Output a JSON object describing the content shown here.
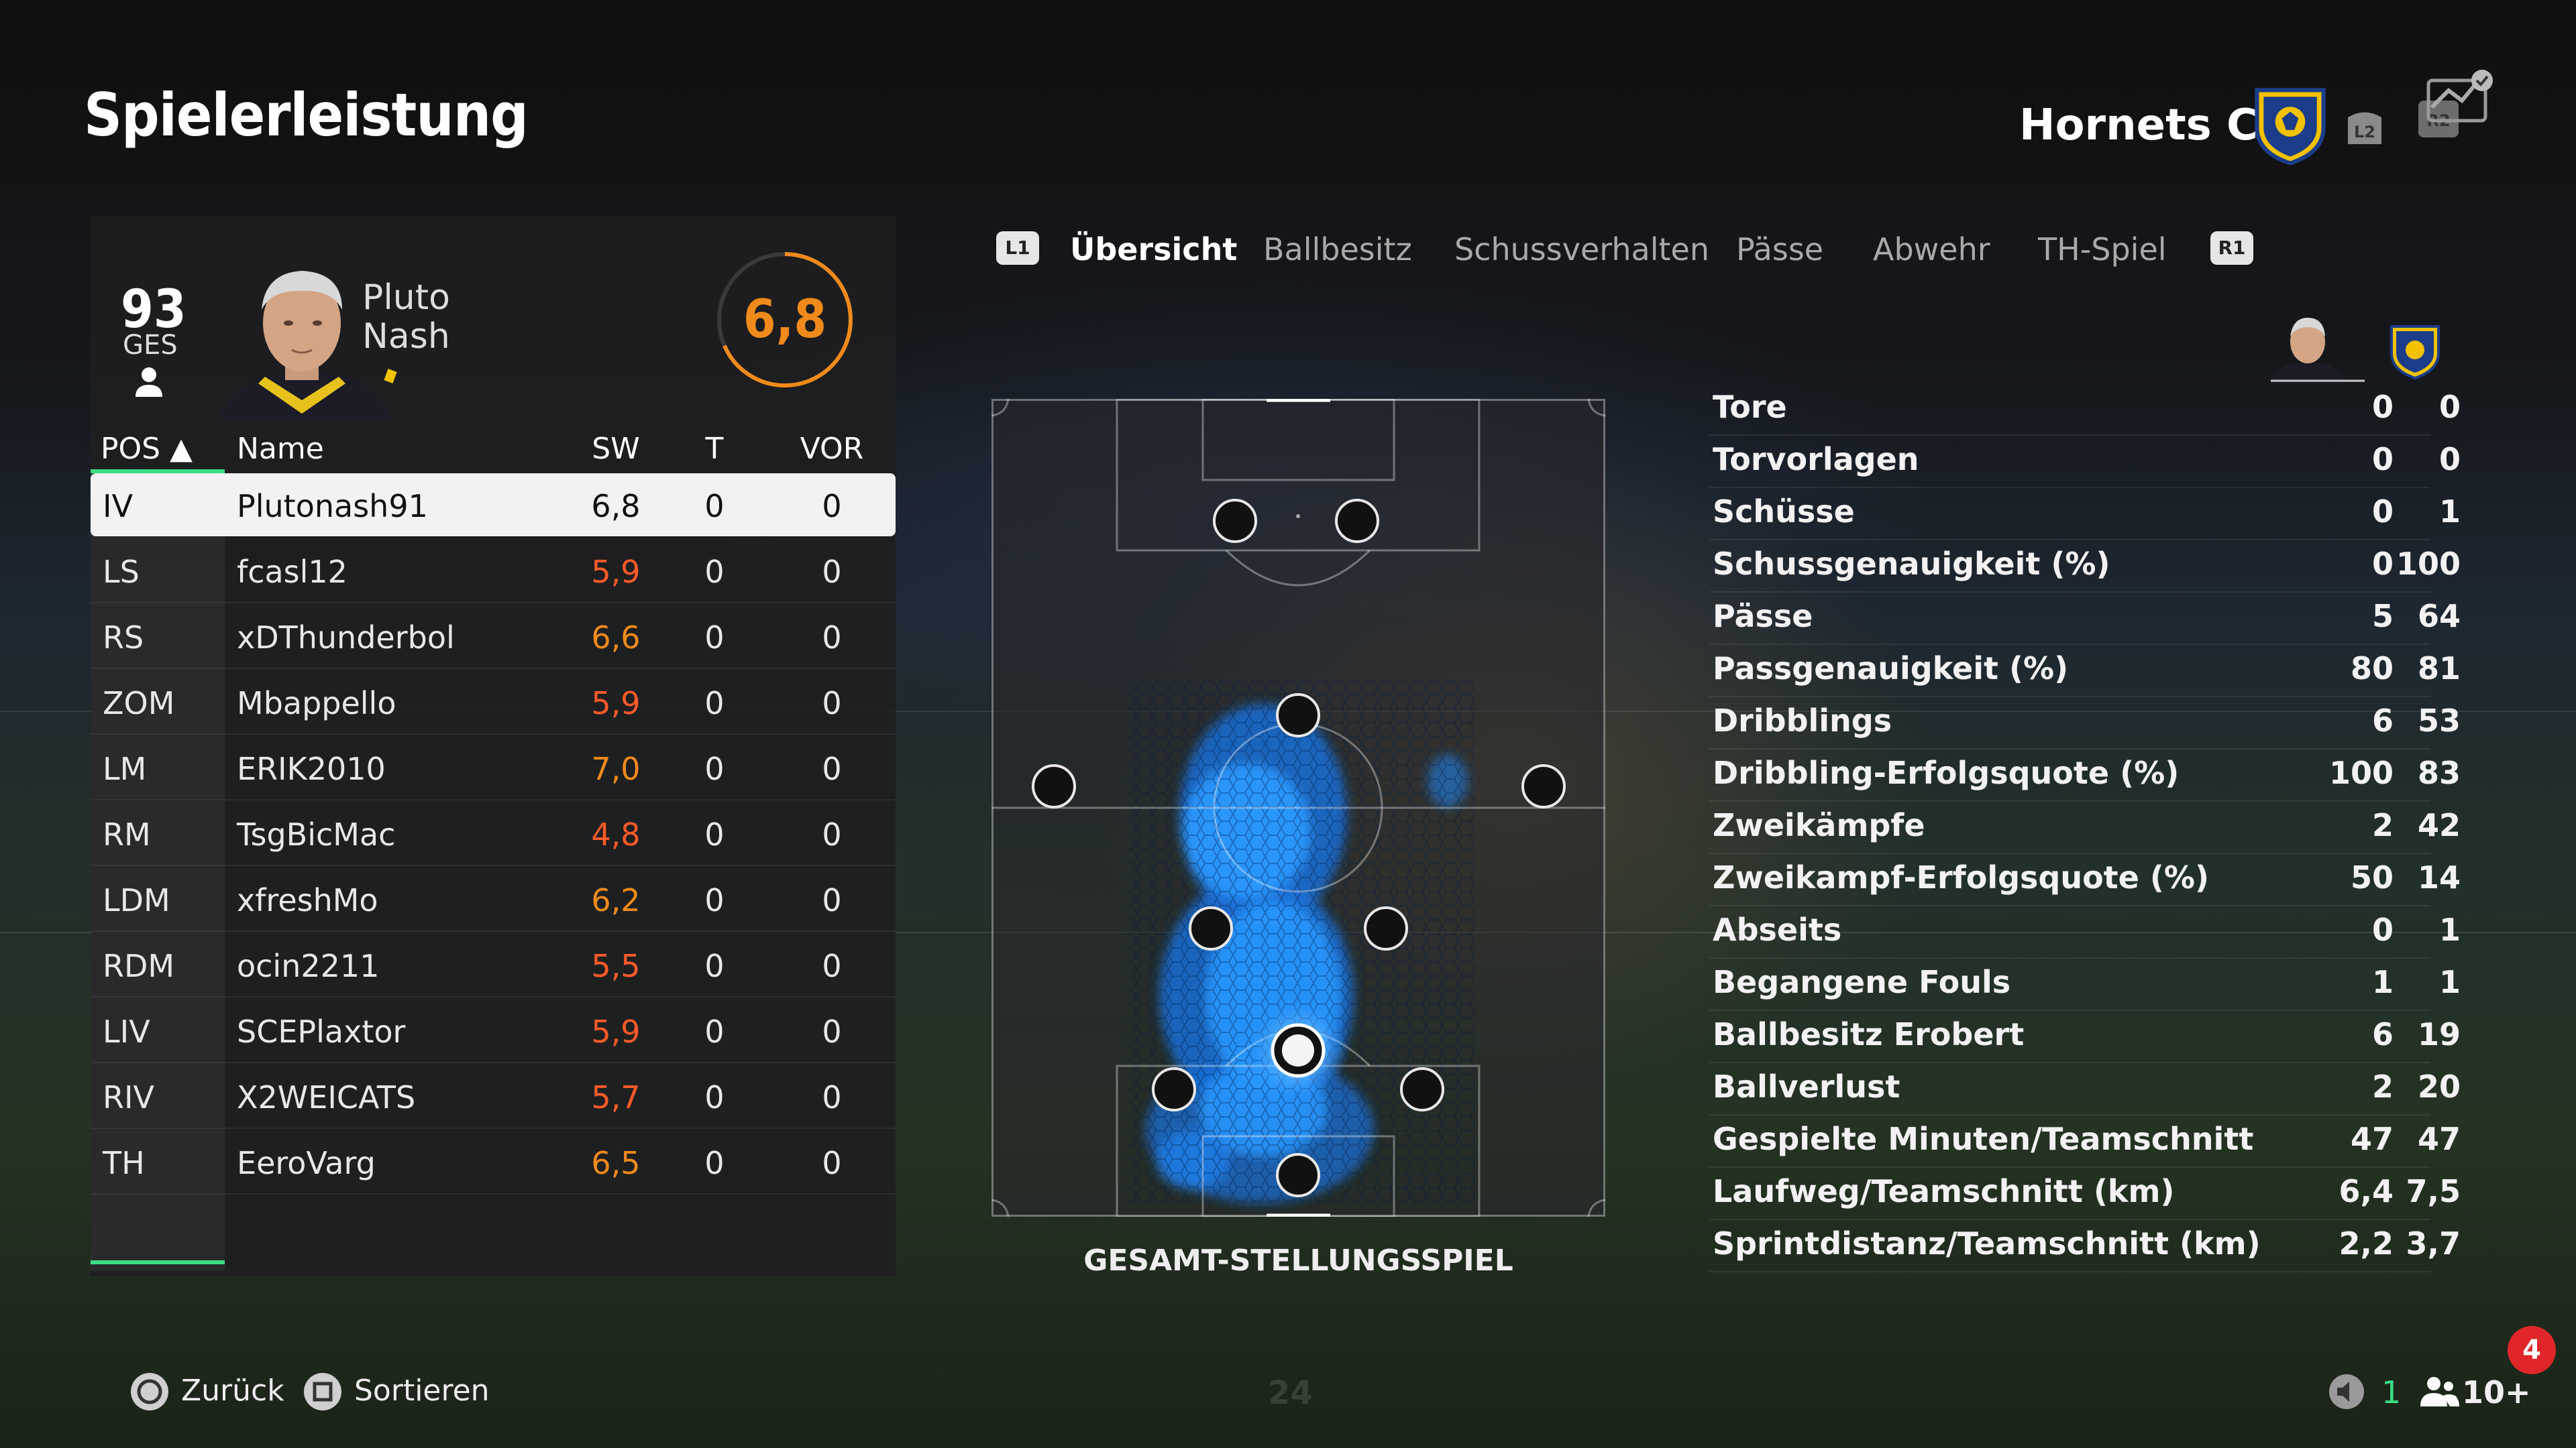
{
  "header": {
    "title": "Spielerleistung",
    "club_name": "Hornets CF"
  },
  "player": {
    "overall": "93",
    "overall_label": "GES",
    "first_name": "Pluto",
    "last_name": "Nash",
    "rating": "6,8"
  },
  "table": {
    "columns": {
      "pos": "POS ▲",
      "name": "Name",
      "sw": "SW",
      "t": "T",
      "vor": "VOR"
    },
    "rows": [
      {
        "pos": "IV",
        "name": "Plutonash91",
        "sw": "6,8",
        "t": "0",
        "vor": "0",
        "selected": true
      },
      {
        "pos": "LS",
        "name": "fcasl12",
        "sw": "5,9",
        "t": "0",
        "vor": "0"
      },
      {
        "pos": "RS",
        "name": "xDThunderbol",
        "sw": "6,6",
        "t": "0",
        "vor": "0"
      },
      {
        "pos": "ZOM",
        "name": "Mbappello",
        "sw": "5,9",
        "t": "0",
        "vor": "0"
      },
      {
        "pos": "LM",
        "name": "ERIK2010",
        "sw": "7,0",
        "t": "0",
        "vor": "0"
      },
      {
        "pos": "RM",
        "name": "TsgBicMac",
        "sw": "4,8",
        "t": "0",
        "vor": "0"
      },
      {
        "pos": "LDM",
        "name": "xfreshMo",
        "sw": "6,2",
        "t": "0",
        "vor": "0"
      },
      {
        "pos": "RDM",
        "name": "ocin2211",
        "sw": "5,5",
        "t": "0",
        "vor": "0"
      },
      {
        "pos": "LIV",
        "name": "SCEPlaxtor",
        "sw": "5,9",
        "t": "0",
        "vor": "0"
      },
      {
        "pos": "RIV",
        "name": "X2WEICATS",
        "sw": "5,7",
        "t": "0",
        "vor": "0"
      },
      {
        "pos": "TH",
        "name": "EeroVarg",
        "sw": "6,5",
        "t": "0",
        "vor": "0"
      }
    ]
  },
  "tabs": {
    "left_button": "L1",
    "right_button": "R1",
    "items": [
      "Übersicht",
      "Ballbesitz",
      "Schussverhalten",
      "Pässe",
      "Abwehr",
      "TH-Spiel"
    ],
    "active": "Übersicht"
  },
  "pitch": {
    "caption": "GESAMT-STELLUNGSSPIEL"
  },
  "stats": [
    {
      "label": "Tore",
      "player": "0",
      "team": "0"
    },
    {
      "label": "Torvorlagen",
      "player": "0",
      "team": "0"
    },
    {
      "label": "Schüsse",
      "player": "0",
      "team": "1"
    },
    {
      "label": "Schussgenauigkeit (%)",
      "player": "0",
      "team": "100"
    },
    {
      "label": "Pässe",
      "player": "5",
      "team": "64"
    },
    {
      "label": "Passgenauigkeit (%)",
      "player": "80",
      "team": "81"
    },
    {
      "label": "Dribblings",
      "player": "6",
      "team": "53"
    },
    {
      "label": "Dribbling-Erfolgsquote (%)",
      "player": "100",
      "team": "83"
    },
    {
      "label": "Zweikämpfe",
      "player": "2",
      "team": "42"
    },
    {
      "label": "Zweikampf-Erfolgsquote (%)",
      "player": "50",
      "team": "14"
    },
    {
      "label": "Abseits",
      "player": "0",
      "team": "1"
    },
    {
      "label": "Begangene Fouls",
      "player": "1",
      "team": "1"
    },
    {
      "label": "Ballbesitz Erobert",
      "player": "6",
      "team": "19"
    },
    {
      "label": "Ballverlust",
      "player": "2",
      "team": "20"
    },
    {
      "label": "Gespielte Minuten/Teamschnitt",
      "player": "47",
      "team": "47"
    },
    {
      "label": "Laufweg/Teamschnitt (km)",
      "player": "6,4",
      "team": "7,5"
    },
    {
      "label": "Sprintdistanz/Teamschnitt (km)",
      "player": "2,2",
      "team": "3,7"
    }
  ],
  "footer": {
    "back_label": "Zurück",
    "sort_label": "Sortieren",
    "page_number": "24",
    "voice_count": "1",
    "players_count": "10+",
    "notifications": "4"
  },
  "colors": {
    "rating_orange": "#f08a1a",
    "rating_red": "#ff5a2a",
    "accent_green": "#3ddc84",
    "heat_blue": "#1e8cff",
    "badge_red": "#e0262a"
  }
}
